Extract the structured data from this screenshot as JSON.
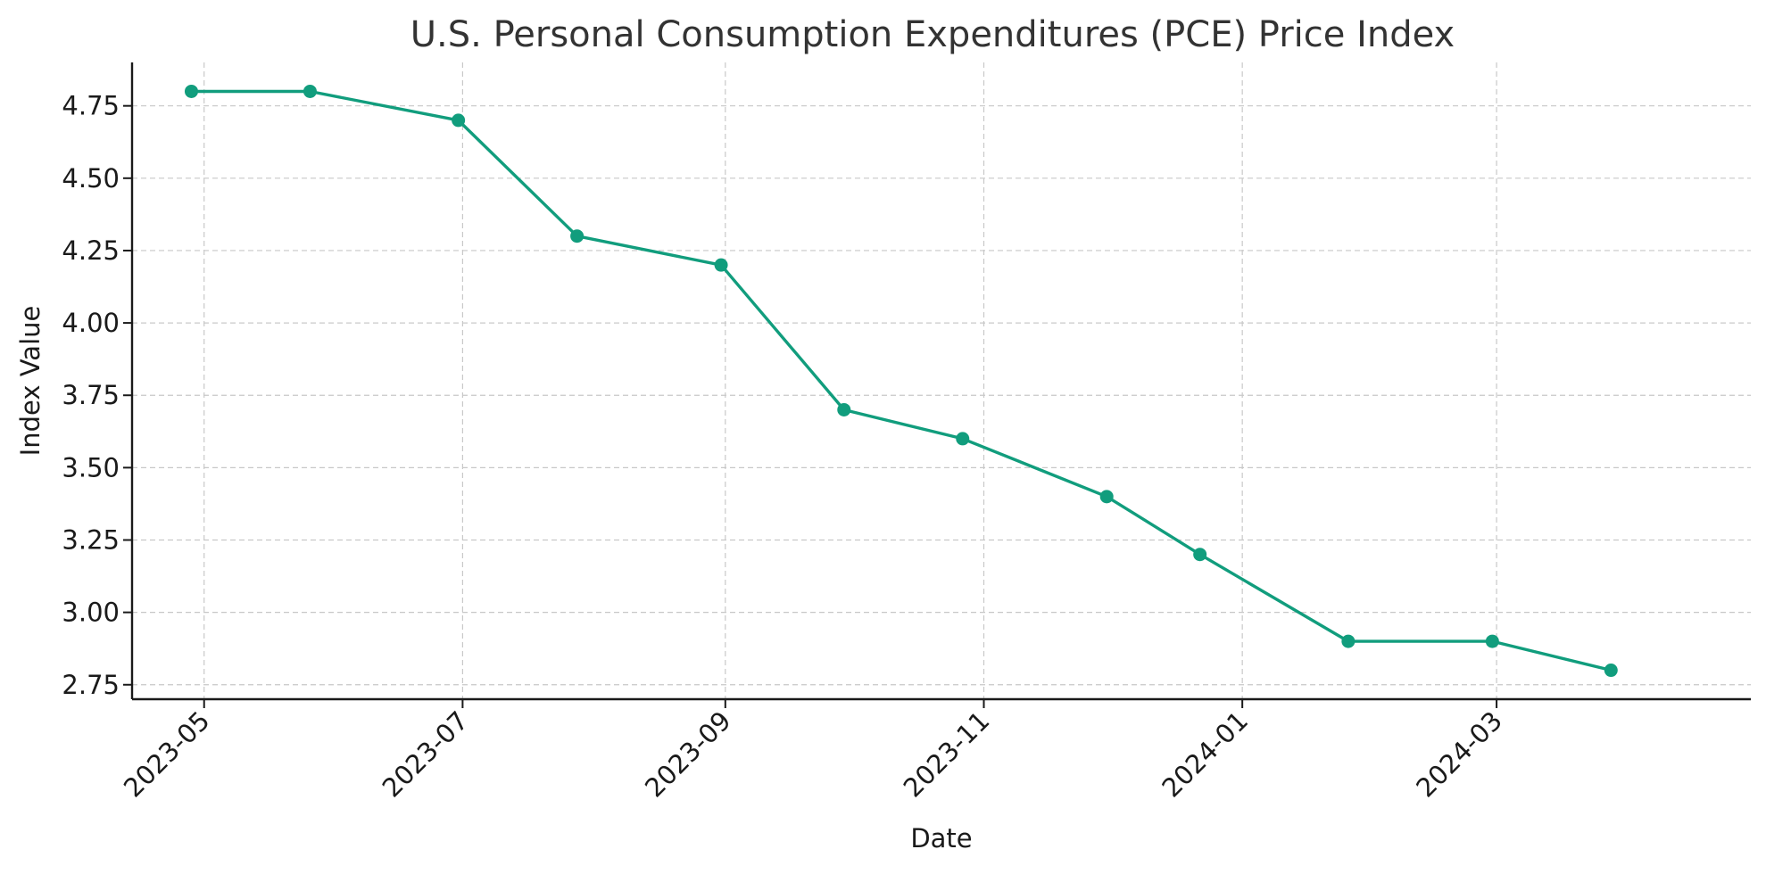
{
  "chart_data": {
    "type": "line",
    "title": "U.S. Personal Consumption Expenditures (PCE) Price Index",
    "xlabel": "Date",
    "ylabel": "Index Value",
    "x_type": "date",
    "xlim": [
      "2023-04-14",
      "2024-04-30"
    ],
    "ylim": [
      2.7,
      4.9
    ],
    "grid": true,
    "x_ticks": [
      "2023-05-01",
      "2023-07-01",
      "2023-09-01",
      "2023-11-01",
      "2024-01-01",
      "2024-03-01"
    ],
    "x_tick_labels": [
      "2023-05",
      "2023-07",
      "2023-09",
      "2023-11",
      "2024-01",
      "2024-03"
    ],
    "y_ticks": [
      2.75,
      3.0,
      3.25,
      3.5,
      3.75,
      4.0,
      4.25,
      4.5,
      4.75
    ],
    "y_tick_labels": [
      "2.75",
      "3.00",
      "3.25",
      "3.50",
      "3.75",
      "4.00",
      "4.25",
      "4.50",
      "4.75"
    ],
    "series": [
      {
        "color": "#119d7d",
        "x": [
          "2023-04-28",
          "2023-05-26",
          "2023-06-30",
          "2023-07-28",
          "2023-08-31",
          "2023-09-29",
          "2023-10-27",
          "2023-11-30",
          "2023-12-22",
          "2024-01-26",
          "2024-02-29",
          "2024-03-28"
        ],
        "y": [
          4.8,
          4.8,
          4.7,
          4.3,
          4.2,
          3.7,
          3.6,
          3.4,
          3.2,
          2.9,
          2.9,
          2.8
        ]
      }
    ]
  }
}
